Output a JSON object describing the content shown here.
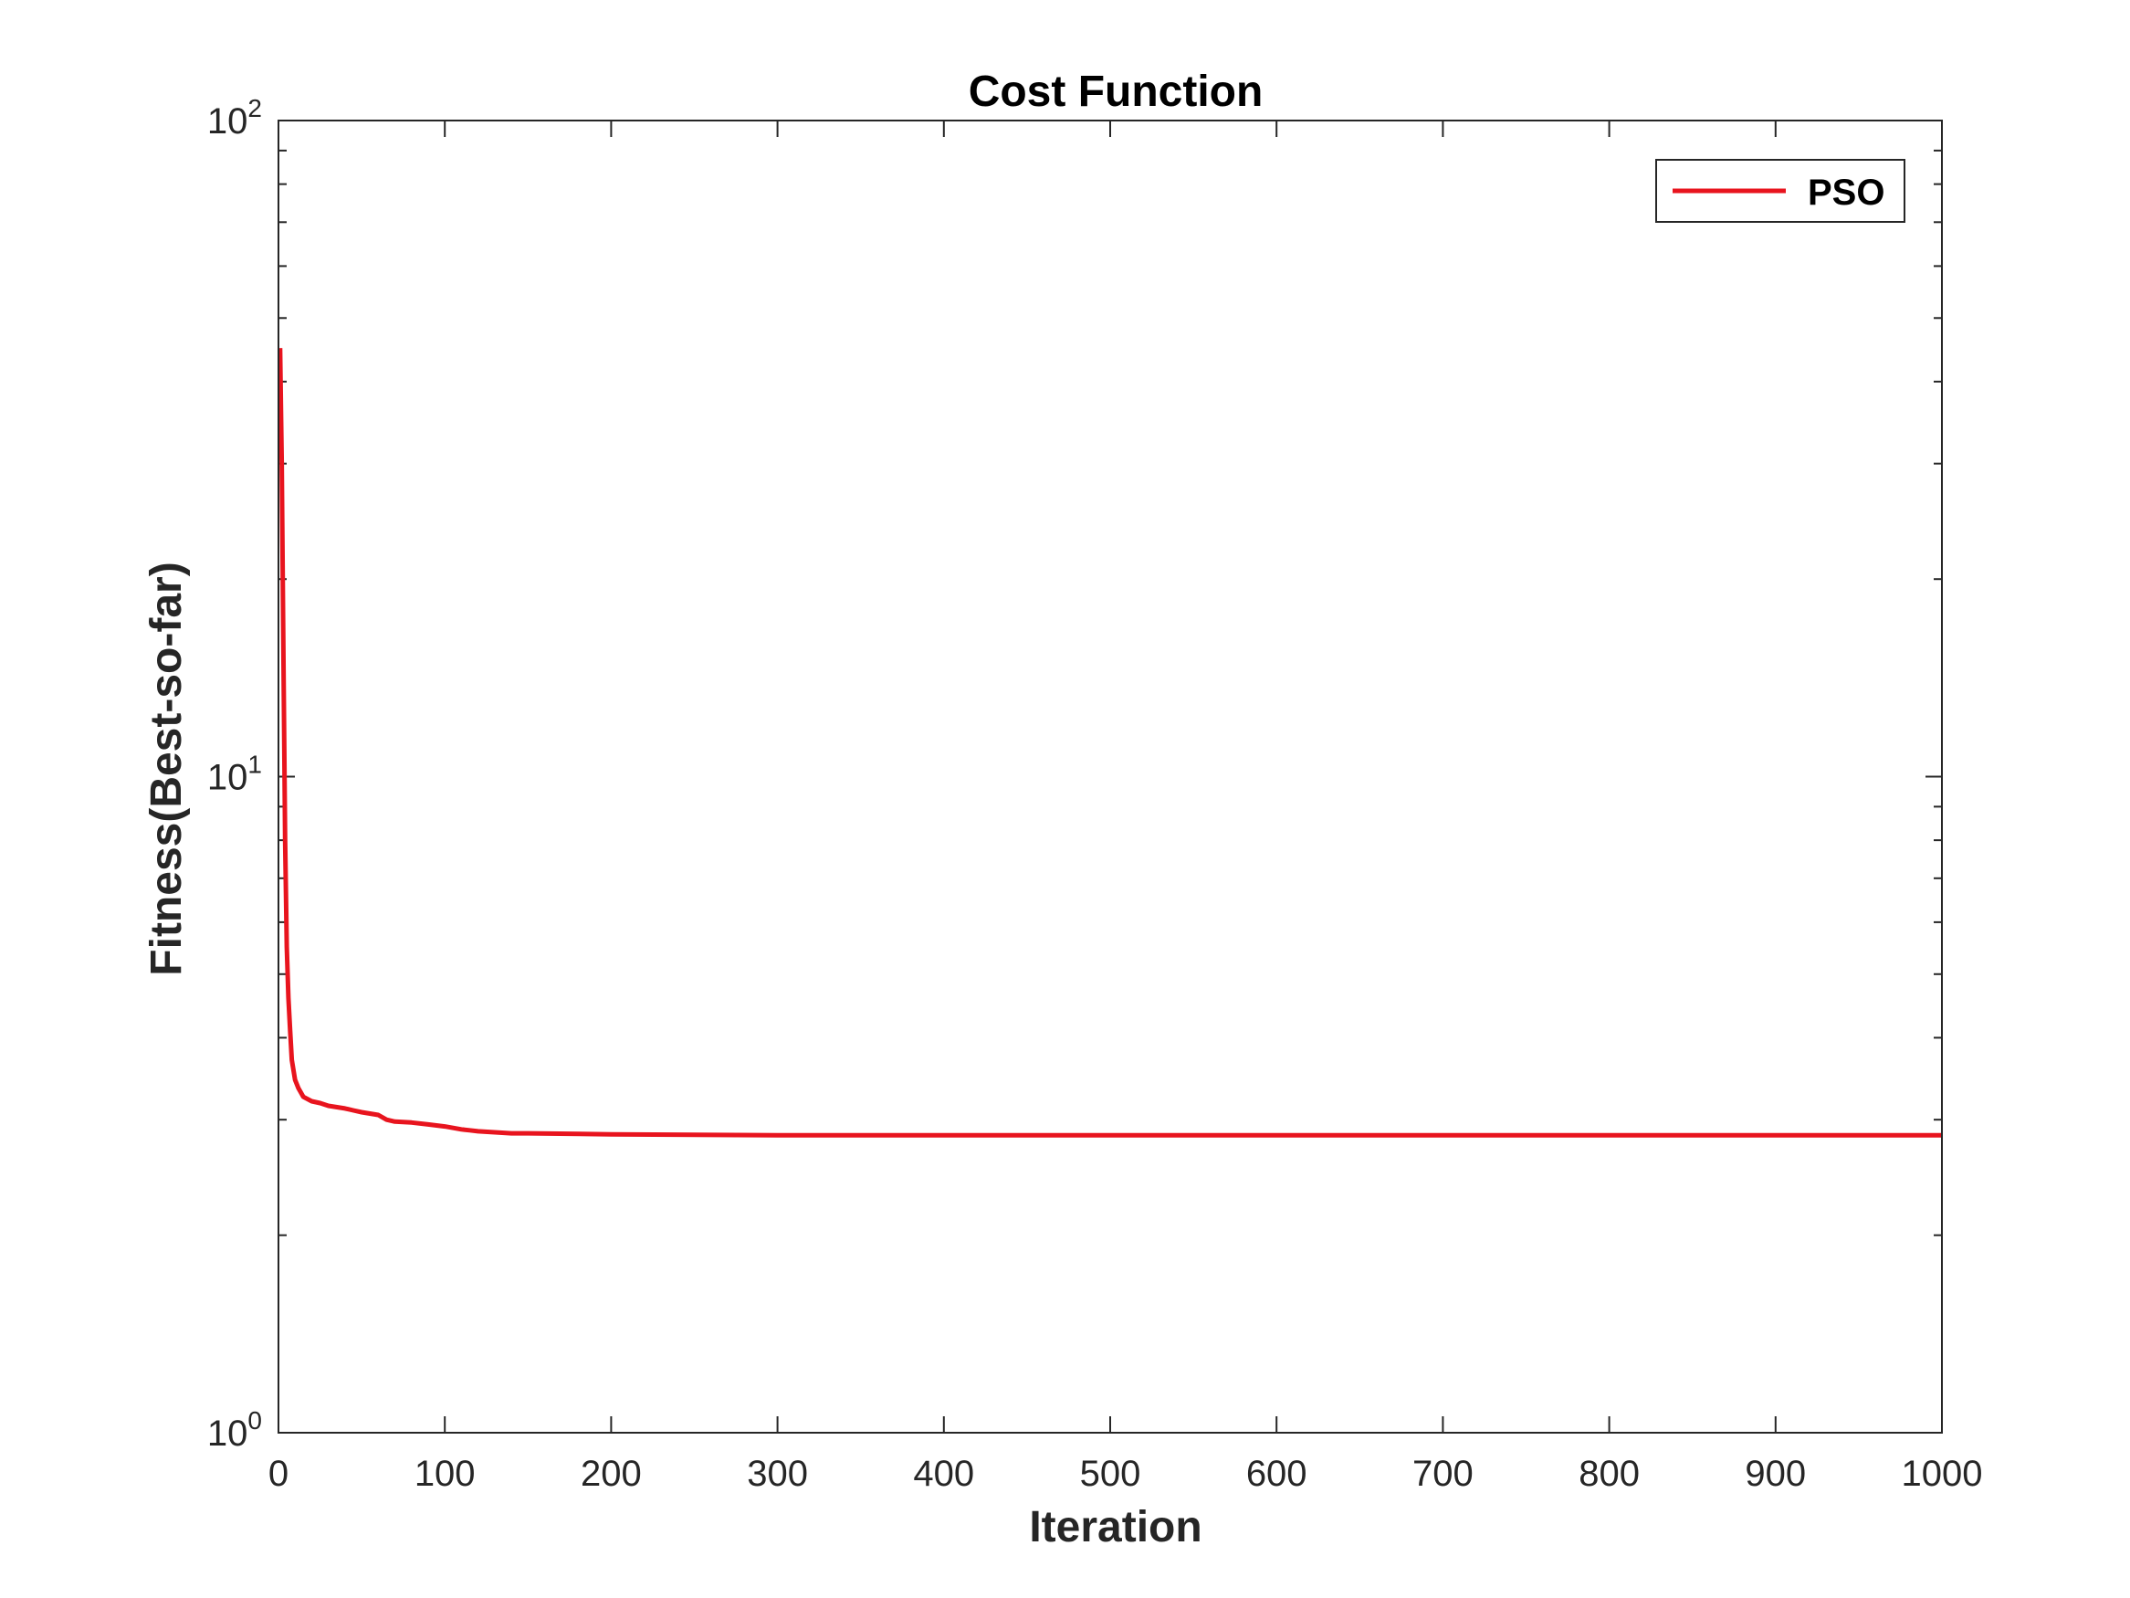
{
  "chart_data": {
    "type": "line",
    "title": "Cost Function",
    "xlabel": "Iteration",
    "ylabel": "Fitness(Best-so-far)",
    "xlim": [
      0,
      1000
    ],
    "ylim": [
      1,
      100
    ],
    "yscale": "log",
    "xticks": [
      "0",
      "100",
      "200",
      "300",
      "400",
      "500",
      "600",
      "700",
      "800",
      "900",
      "1000"
    ],
    "yticks": [
      {
        "base": "10",
        "exp": "0"
      },
      {
        "base": "10",
        "exp": "1"
      },
      {
        "base": "10",
        "exp": "2"
      }
    ],
    "grid": false,
    "legend_position": "top-right",
    "series": [
      {
        "name": "PSO",
        "color": "#e8141e",
        "x": [
          1,
          2,
          3,
          4,
          5,
          6,
          7,
          8,
          10,
          12,
          15,
          20,
          25,
          30,
          40,
          45,
          50,
          60,
          65,
          70,
          80,
          90,
          100,
          110,
          115,
          120,
          130,
          140,
          150,
          200,
          300,
          400,
          500,
          600,
          700,
          800,
          900,
          1000
        ],
        "y": [
          45,
          30,
          15,
          8,
          5.5,
          4.6,
          4.1,
          3.7,
          3.45,
          3.35,
          3.25,
          3.2,
          3.18,
          3.15,
          3.12,
          3.1,
          3.08,
          3.05,
          3.0,
          2.98,
          2.97,
          2.95,
          2.93,
          2.9,
          2.89,
          2.88,
          2.87,
          2.86,
          2.86,
          2.85,
          2.84,
          2.84,
          2.84,
          2.84,
          2.84,
          2.84,
          2.84,
          2.84
        ]
      }
    ]
  }
}
